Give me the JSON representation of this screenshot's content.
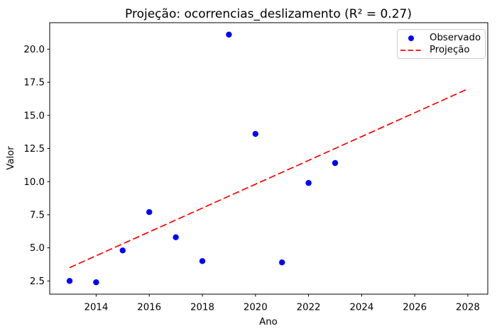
{
  "chart_data": {
    "type": "scatter",
    "title": "Projeção: ocorrencias_deslizamento (R² = 0.27)",
    "xlabel": "Ano",
    "ylabel": "Valor",
    "xlim": [
      2012.25,
      2028.75
    ],
    "ylim": [
      1.5,
      22.0
    ],
    "x_ticks": [
      2014,
      2016,
      2018,
      2020,
      2022,
      2024,
      2026,
      2028
    ],
    "x_tick_labels": [
      "2014",
      "2016",
      "2018",
      "2020",
      "2022",
      "2024",
      "2026",
      "2028"
    ],
    "y_ticks": [
      2.5,
      5.0,
      7.5,
      10.0,
      12.5,
      15.0,
      17.5,
      20.0
    ],
    "y_tick_labels": [
      "2.5",
      "5.0",
      "7.5",
      "10.0",
      "12.5",
      "15.0",
      "17.5",
      "20.0"
    ],
    "grid": false,
    "legend": {
      "position": "upper right"
    },
    "series": [
      {
        "name": "Observado",
        "kind": "scatter",
        "marker": "circle",
        "color": "#0000ff",
        "x": [
          2013,
          2014,
          2015,
          2016,
          2017,
          2018,
          2019,
          2020,
          2021,
          2022,
          2023
        ],
        "y": [
          2.5,
          2.4,
          4.8,
          7.7,
          5.8,
          4.0,
          21.1,
          13.6,
          3.9,
          9.9,
          11.4
        ]
      },
      {
        "name": "Projeção",
        "kind": "line",
        "style": "dashed",
        "color": "#ff0000",
        "x": [
          2013,
          2028
        ],
        "y": [
          3.5,
          17.0
        ]
      }
    ]
  }
}
